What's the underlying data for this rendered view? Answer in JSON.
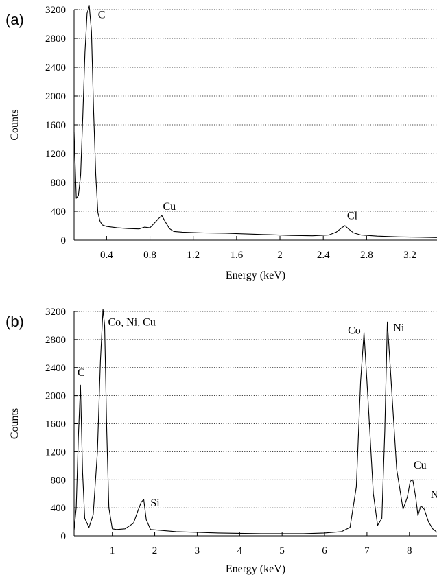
{
  "chart_data": [
    {
      "type": "line",
      "panel_label": "(a)",
      "xlabel": "Energy (keV)",
      "ylabel": "Counts",
      "xlim": [
        0.1,
        3.45
      ],
      "ylim": [
        0,
        3200
      ],
      "xticks": [
        "0.4",
        "0.8",
        "1.2",
        "1.6",
        "2",
        "2.4",
        "2.8",
        "3.2"
      ],
      "xtick_values": [
        0.4,
        0.8,
        1.2,
        1.6,
        2.0,
        2.4,
        2.8,
        3.2
      ],
      "yticks": [
        "0",
        "400",
        "800",
        "1200",
        "1600",
        "2000",
        "2400",
        "2800",
        "3200"
      ],
      "ytick_values": [
        0,
        400,
        800,
        1200,
        1600,
        2000,
        2400,
        2800,
        3200
      ],
      "grid": "horizontal-dotted",
      "series": [
        {
          "x": [
            0.1,
            0.12,
            0.14,
            0.16,
            0.18,
            0.2,
            0.22,
            0.24,
            0.26,
            0.28,
            0.3,
            0.32,
            0.34,
            0.36,
            0.4,
            0.5,
            0.6,
            0.7,
            0.75,
            0.8,
            0.85,
            0.88,
            0.91,
            0.94,
            0.98,
            1.02,
            1.1,
            1.3,
            1.5,
            1.7,
            1.9,
            2.1,
            2.3,
            2.45,
            2.52,
            2.57,
            2.6,
            2.63,
            2.68,
            2.75,
            2.9,
            3.1,
            3.3,
            3.45
          ],
          "y": [
            1500,
            580,
            620,
            900,
            1700,
            2600,
            3150,
            3250,
            2900,
            1800,
            900,
            380,
            260,
            210,
            190,
            170,
            160,
            155,
            180,
            170,
            250,
            300,
            340,
            260,
            160,
            120,
            110,
            100,
            95,
            85,
            75,
            65,
            60,
            70,
            110,
            170,
            200,
            160,
            100,
            70,
            55,
            45,
            40,
            35
          ]
        }
      ],
      "annotations": [
        {
          "text": "C",
          "x": 0.32,
          "y": 3080
        },
        {
          "text": "Cu",
          "x": 0.92,
          "y": 420
        },
        {
          "text": "Cl",
          "x": 2.62,
          "y": 290
        }
      ]
    },
    {
      "type": "line",
      "panel_label": "(b)",
      "xlabel": "Energy (keV)",
      "ylabel": "Counts",
      "xlim": [
        0.1,
        8.65
      ],
      "ylim": [
        0,
        3200
      ],
      "xticks": [
        "1",
        "2",
        "3",
        "4",
        "5",
        "6",
        "7",
        "8"
      ],
      "xtick_values": [
        1,
        2,
        3,
        4,
        5,
        6,
        7,
        8
      ],
      "yticks": [
        "0",
        "400",
        "800",
        "1200",
        "1600",
        "2000",
        "2400",
        "2800",
        "3200"
      ],
      "ytick_values": [
        0,
        400,
        800,
        1200,
        1600,
        2000,
        2400,
        2800,
        3200
      ],
      "grid": "horizontal-dotted",
      "series": [
        {
          "x": [
            0.1,
            0.15,
            0.2,
            0.25,
            0.3,
            0.35,
            0.45,
            0.55,
            0.65,
            0.72,
            0.78,
            0.82,
            0.87,
            0.92,
            1.0,
            1.1,
            1.3,
            1.5,
            1.6,
            1.68,
            1.74,
            1.8,
            1.9,
            2.1,
            2.5,
            3.0,
            3.5,
            4.0,
            4.5,
            5.0,
            5.5,
            6.0,
            6.4,
            6.6,
            6.75,
            6.85,
            6.93,
            7.02,
            7.15,
            7.25,
            7.35,
            7.42,
            7.48,
            7.55,
            7.7,
            7.85,
            7.95,
            8.02,
            8.08,
            8.15,
            8.2,
            8.27,
            8.35,
            8.45,
            8.55,
            8.65
          ],
          "y": [
            80,
            400,
            1400,
            2150,
            900,
            250,
            120,
            300,
            1200,
            2500,
            3230,
            3000,
            1500,
            400,
            100,
            90,
            100,
            180,
            350,
            480,
            520,
            230,
            90,
            80,
            60,
            50,
            40,
            35,
            30,
            30,
            30,
            40,
            60,
            120,
            700,
            2200,
            2900,
            2000,
            600,
            150,
            250,
            1500,
            3050,
            2400,
            950,
            380,
            550,
            780,
            800,
            540,
            290,
            430,
            380,
            200,
            100,
            50
          ]
        }
      ],
      "annotations": [
        {
          "text": "C",
          "x": 0.18,
          "y": 2280
        },
        {
          "text": "Co, Ni, Cu",
          "x": 0.9,
          "y": 3000
        },
        {
          "text": "Si",
          "x": 1.9,
          "y": 420
        },
        {
          "text": "Co",
          "x": 6.55,
          "y": 2880
        },
        {
          "text": "Ni",
          "x": 7.62,
          "y": 2920
        },
        {
          "text": "Cu",
          "x": 8.1,
          "y": 960
        },
        {
          "text": "N",
          "x": 8.5,
          "y": 540
        }
      ]
    }
  ]
}
